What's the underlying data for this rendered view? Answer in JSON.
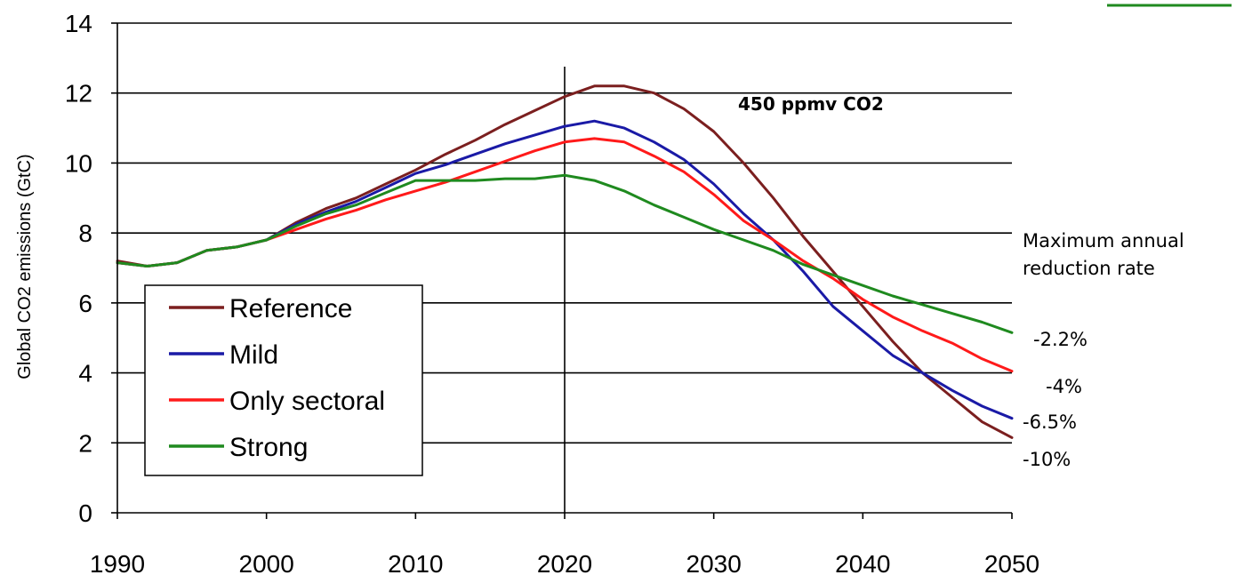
{
  "chart_data": {
    "type": "line",
    "title": "",
    "xlabel": "",
    "ylabel": "Global CO2 emissions (GtC)",
    "xlim": [
      1990,
      2050
    ],
    "ylim": [
      0,
      14
    ],
    "xticks": [
      1990,
      2000,
      2010,
      2020,
      2030,
      2040,
      2050
    ],
    "yticks": [
      0,
      2,
      4,
      6,
      8,
      10,
      12,
      14
    ],
    "grid": "horizontal",
    "legend_position": "bottom-left",
    "vertical_marker_x": 2020,
    "annotations": {
      "scenario": "450 ppmv CO2",
      "rate_header_line1": "Maximum annual",
      "rate_header_line2": "reduction rate"
    },
    "series": [
      {
        "name": "Reference",
        "color": "#7b1f1f",
        "rate_label": "-10%",
        "x": [
          1990,
          1992,
          1994,
          1996,
          1998,
          2000,
          2002,
          2004,
          2006,
          2008,
          2010,
          2012,
          2014,
          2016,
          2018,
          2020,
          2022,
          2024,
          2026,
          2028,
          2030,
          2032,
          2034,
          2036,
          2038,
          2040,
          2042,
          2044,
          2046,
          2048,
          2050
        ],
        "y": [
          7.2,
          7.05,
          7.15,
          7.5,
          7.6,
          7.8,
          8.3,
          8.7,
          9.0,
          9.4,
          9.8,
          10.25,
          10.65,
          11.1,
          11.5,
          11.9,
          12.2,
          12.2,
          12.0,
          11.55,
          10.9,
          10.0,
          9.0,
          7.9,
          6.9,
          5.9,
          4.9,
          4.0,
          3.3,
          2.6,
          2.15
        ]
      },
      {
        "name": "Mild",
        "color": "#1a1aa6",
        "rate_label": "-6.5%",
        "x": [
          1990,
          1992,
          1994,
          1996,
          1998,
          2000,
          2002,
          2004,
          2006,
          2008,
          2010,
          2012,
          2014,
          2016,
          2018,
          2020,
          2022,
          2024,
          2026,
          2028,
          2030,
          2032,
          2034,
          2036,
          2038,
          2040,
          2042,
          2044,
          2046,
          2048,
          2050
        ],
        "y": [
          7.15,
          7.05,
          7.15,
          7.5,
          7.6,
          7.8,
          8.25,
          8.6,
          8.9,
          9.3,
          9.7,
          9.95,
          10.25,
          10.55,
          10.8,
          11.05,
          11.2,
          11.0,
          10.6,
          10.1,
          9.4,
          8.55,
          7.8,
          6.9,
          5.9,
          5.2,
          4.5,
          4.0,
          3.5,
          3.05,
          2.7
        ]
      },
      {
        "name": "Only sectoral",
        "color": "#ff1a1a",
        "rate_label": "-4%",
        "x": [
          1990,
          1992,
          1994,
          1996,
          1998,
          2000,
          2002,
          2004,
          2006,
          2008,
          2010,
          2012,
          2014,
          2016,
          2018,
          2020,
          2022,
          2024,
          2026,
          2028,
          2030,
          2032,
          2034,
          2036,
          2038,
          2040,
          2042,
          2044,
          2046,
          2048,
          2050
        ],
        "y": [
          7.15,
          7.05,
          7.15,
          7.5,
          7.6,
          7.8,
          8.1,
          8.4,
          8.65,
          8.95,
          9.2,
          9.45,
          9.75,
          10.05,
          10.35,
          10.6,
          10.7,
          10.6,
          10.2,
          9.75,
          9.1,
          8.35,
          7.8,
          7.2,
          6.7,
          6.1,
          5.6,
          5.2,
          4.85,
          4.4,
          4.05
        ]
      },
      {
        "name": "Strong",
        "color": "#1f8a1f",
        "rate_label": "-2.2%",
        "x": [
          1990,
          1992,
          1994,
          1996,
          1998,
          2000,
          2002,
          2004,
          2006,
          2008,
          2010,
          2012,
          2014,
          2016,
          2018,
          2020,
          2022,
          2024,
          2026,
          2028,
          2030,
          2032,
          2034,
          2036,
          2038,
          2040,
          2042,
          2044,
          2046,
          2048,
          2050
        ],
        "y": [
          7.15,
          7.05,
          7.15,
          7.5,
          7.6,
          7.8,
          8.2,
          8.55,
          8.8,
          9.15,
          9.5,
          9.5,
          9.5,
          9.55,
          9.55,
          9.65,
          9.5,
          9.2,
          8.8,
          8.45,
          8.1,
          7.8,
          7.5,
          7.1,
          6.8,
          6.5,
          6.2,
          5.95,
          5.7,
          5.45,
          5.15
        ]
      }
    ]
  }
}
